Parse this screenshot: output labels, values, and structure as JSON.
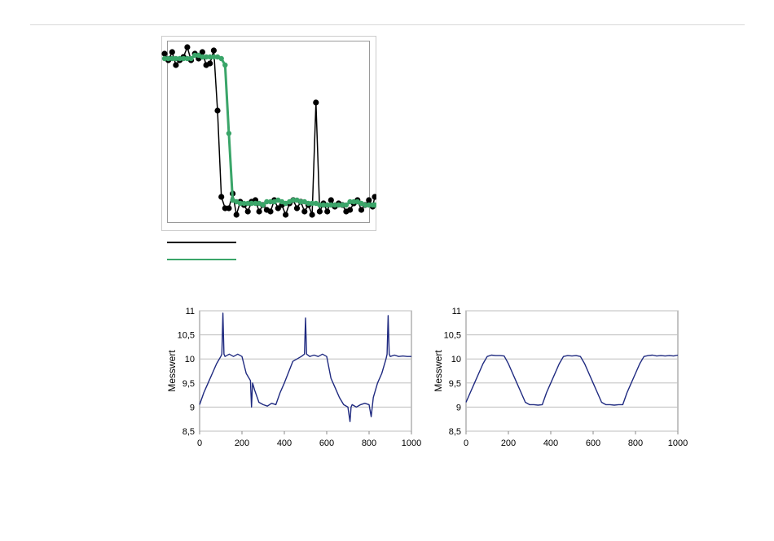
{
  "colors": {
    "raw_series": "#000000",
    "filtered_series": "#3aa569",
    "wave_series": "#1f2a80",
    "grid": "#bdbdbd",
    "frame": "#cccccc"
  },
  "legend": {
    "line_1_color": "#000000",
    "line_2_color": "#3aa569"
  },
  "chart_data": [
    {
      "type": "line",
      "id": "step-chart",
      "xlabel": "",
      "ylabel": "",
      "xlim": [
        0,
        100
      ],
      "ylim": [
        0,
        1.1
      ],
      "grid": false,
      "series": [
        {
          "style": "line+markers",
          "color": "#000000",
          "x": [
            0,
            1.8,
            3.6,
            5.4,
            7.2,
            9,
            10.8,
            12.6,
            14.4,
            16.2,
            18,
            19.8,
            21.6,
            23.4,
            25.2,
            27,
            28.8,
            30.6,
            32.4,
            34.2,
            36,
            37.8,
            39.6,
            41.4,
            43.2,
            45,
            46.8,
            48.6,
            50.4,
            52.2,
            54,
            55.8,
            57.6,
            59.4,
            61.2,
            63,
            64.8,
            66.6,
            68.4,
            70.2,
            72,
            73.8,
            75.6,
            77.4,
            79.2,
            81,
            82.8,
            84.6,
            86.4,
            88.2,
            90,
            91.8,
            93.6,
            95.4,
            97.2,
            99,
            100
          ],
          "y": [
            1.03,
            0.99,
            1.04,
            0.96,
            0.99,
            1.01,
            1.07,
            0.99,
            1.03,
            1.0,
            1.04,
            0.96,
            0.97,
            1.05,
            0.68,
            0.15,
            0.08,
            0.08,
            0.17,
            0.04,
            0.12,
            0.1,
            0.06,
            0.12,
            0.13,
            0.06,
            0.1,
            0.07,
            0.06,
            0.13,
            0.08,
            0.1,
            0.04,
            0.11,
            0.13,
            0.08,
            0.12,
            0.06,
            0.1,
            0.04,
            0.73,
            0.06,
            0.11,
            0.06,
            0.13,
            0.09,
            0.11,
            0.1,
            0.06,
            0.07,
            0.11,
            0.13,
            0.07,
            0.1,
            0.13,
            0.09,
            0.15
          ]
        },
        {
          "style": "line+markers",
          "color": "#3aa569",
          "x": [
            0,
            1.8,
            3.6,
            5.4,
            7.2,
            9,
            10.8,
            12.6,
            14.4,
            16.2,
            18,
            19.8,
            21.6,
            23.4,
            25.2,
            27,
            28.8,
            30.6,
            32.4,
            34.2,
            36,
            37.8,
            39.6,
            41.4,
            43.2,
            45,
            46.8,
            48.6,
            50.4,
            52.2,
            54,
            55.8,
            57.6,
            59.4,
            61.2,
            63,
            64.8,
            66.6,
            68.4,
            70.2,
            72,
            73.8,
            75.6,
            77.4,
            79.2,
            81,
            82.8,
            84.6,
            86.4,
            88.2,
            90,
            91.8,
            93.6,
            95.4,
            97.2,
            99,
            100
          ],
          "y": [
            1.0,
            1.0,
            1.0,
            1.0,
            1.0,
            1.0,
            1.0,
            1.0,
            1.02,
            1.02,
            1.01,
            1.01,
            1.01,
            1.01,
            1.01,
            1.0,
            0.96,
            0.54,
            0.13,
            0.12,
            0.11,
            0.11,
            0.11,
            0.11,
            0.11,
            0.11,
            0.1,
            0.12,
            0.12,
            0.12,
            0.13,
            0.12,
            0.11,
            0.12,
            0.13,
            0.13,
            0.12,
            0.12,
            0.11,
            0.11,
            0.11,
            0.1,
            0.1,
            0.1,
            0.1,
            0.1,
            0.1,
            0.1,
            0.1,
            0.12,
            0.12,
            0.12,
            0.11,
            0.1,
            0.1,
            0.1,
            0.1
          ]
        }
      ]
    },
    {
      "type": "line",
      "id": "noisy-chart",
      "ylabel": "Messwert",
      "xlabel": "",
      "xlim": [
        0,
        1000
      ],
      "ylim": [
        8.5,
        11
      ],
      "xticks": [
        0,
        200,
        400,
        600,
        800,
        1000
      ],
      "xtick_labels": [
        "0",
        "200",
        "400",
        "600",
        "800",
        "1000"
      ],
      "yticks": [
        8.5,
        9,
        9.5,
        10,
        10.5,
        11
      ],
      "ytick_labels": [
        "8,5",
        "9",
        "9,5",
        "10",
        "10,5",
        "11"
      ],
      "grid": true,
      "series": [
        {
          "color": "#1f2a80",
          "x": [
            0,
            20,
            40,
            60,
            80,
            100,
            105,
            110,
            115,
            120,
            140,
            160,
            180,
            200,
            220,
            240,
            245,
            250,
            260,
            280,
            300,
            320,
            340,
            360,
            380,
            400,
            440,
            480,
            495,
            500,
            505,
            520,
            540,
            560,
            580,
            600,
            620,
            640,
            660,
            680,
            700,
            710,
            715,
            720,
            740,
            760,
            780,
            800,
            810,
            820,
            840,
            860,
            880,
            885,
            890,
            895,
            900,
            920,
            940,
            960,
            980,
            1000
          ],
          "y": [
            9.05,
            9.3,
            9.5,
            9.7,
            9.9,
            10.05,
            10.1,
            10.95,
            10.1,
            10.05,
            10.1,
            10.05,
            10.1,
            10.05,
            9.7,
            9.55,
            9.0,
            9.5,
            9.35,
            9.1,
            9.05,
            9.02,
            9.08,
            9.05,
            9.3,
            9.5,
            9.95,
            10.05,
            10.1,
            10.85,
            10.1,
            10.05,
            10.08,
            10.05,
            10.1,
            10.05,
            9.6,
            9.4,
            9.2,
            9.05,
            9.0,
            8.7,
            9.0,
            9.05,
            9.0,
            9.05,
            9.08,
            9.05,
            8.8,
            9.2,
            9.5,
            9.7,
            10.0,
            10.1,
            10.9,
            10.1,
            10.05,
            10.08,
            10.05,
            10.06,
            10.05,
            10.05
          ]
        }
      ]
    },
    {
      "type": "line",
      "id": "smooth-chart",
      "ylabel": "Messwert",
      "xlabel": "",
      "xlim": [
        0,
        1000
      ],
      "ylim": [
        8.5,
        11
      ],
      "xticks": [
        0,
        200,
        400,
        600,
        800,
        1000
      ],
      "xtick_labels": [
        "0",
        "200",
        "400",
        "600",
        "800",
        "1000"
      ],
      "yticks": [
        8.5,
        9,
        9.5,
        10,
        10.5,
        11
      ],
      "ytick_labels": [
        "8,5",
        "9",
        "9,5",
        "10",
        "10,5",
        "11"
      ],
      "grid": true,
      "series": [
        {
          "color": "#1f2a80",
          "x": [
            0,
            20,
            40,
            60,
            80,
            100,
            120,
            140,
            160,
            180,
            200,
            220,
            240,
            260,
            280,
            300,
            320,
            340,
            360,
            380,
            400,
            420,
            440,
            460,
            480,
            500,
            520,
            540,
            560,
            580,
            600,
            620,
            640,
            660,
            680,
            700,
            720,
            740,
            760,
            780,
            800,
            820,
            840,
            860,
            880,
            900,
            920,
            940,
            960,
            980,
            1000
          ],
          "y": [
            9.1,
            9.3,
            9.5,
            9.7,
            9.9,
            10.05,
            10.08,
            10.07,
            10.07,
            10.06,
            9.9,
            9.7,
            9.5,
            9.3,
            9.1,
            9.05,
            9.05,
            9.04,
            9.05,
            9.3,
            9.5,
            9.7,
            9.9,
            10.05,
            10.07,
            10.06,
            10.07,
            10.05,
            9.9,
            9.7,
            9.5,
            9.3,
            9.1,
            9.05,
            9.05,
            9.04,
            9.05,
            9.05,
            9.3,
            9.5,
            9.7,
            9.9,
            10.05,
            10.07,
            10.08,
            10.06,
            10.07,
            10.06,
            10.07,
            10.06,
            10.08
          ]
        }
      ]
    }
  ]
}
